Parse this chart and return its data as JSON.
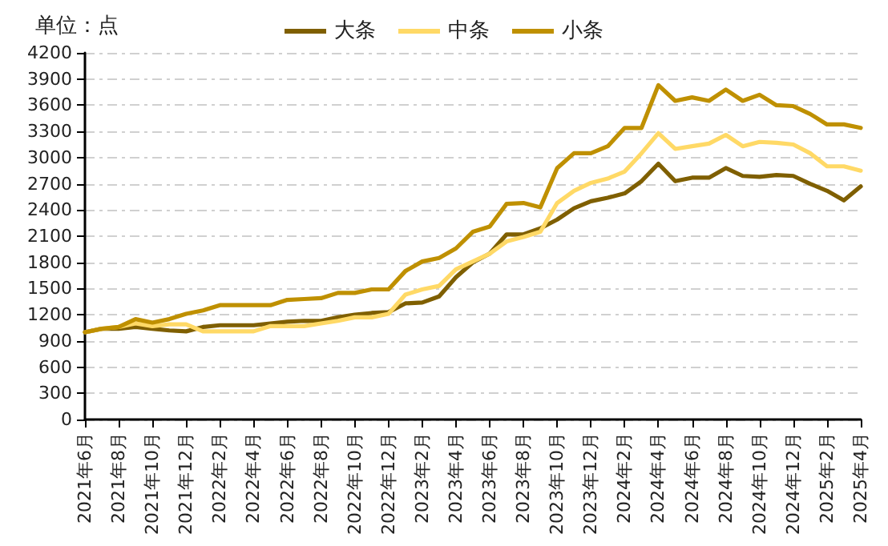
{
  "chart_data": {
    "type": "line",
    "ylabel": "单位：点",
    "categories": [
      "2021年6月",
      null,
      "2021年8月",
      null,
      "2021年10月",
      null,
      "2021年12月",
      null,
      "2022年2月",
      null,
      "2022年4月",
      null,
      "2022年6月",
      null,
      "2022年8月",
      null,
      "2022年10月",
      null,
      "2022年12月",
      null,
      "2023年2月",
      null,
      "2023年4月",
      null,
      "2023年6月",
      null,
      "2023年8月",
      null,
      "2023年10月",
      null,
      "2023年12月",
      null,
      "2024年2月",
      null,
      "2024年4月",
      null,
      "2024年6月",
      null,
      "2024年8月",
      null,
      "2024年10月",
      null,
      "2024年12月",
      null,
      "2025年2月",
      null,
      "2025年4月"
    ],
    "series": [
      {
        "name": "大条",
        "color": "#7f5f00",
        "values": [
          1000,
          1040,
          1040,
          1060,
          1040,
          1020,
          1010,
          1060,
          1080,
          1080,
          1080,
          1100,
          1120,
          1130,
          1130,
          1170,
          1200,
          1220,
          1230,
          1330,
          1340,
          1410,
          1630,
          1800,
          1900,
          2120,
          2120,
          2190,
          2290,
          2420,
          2500,
          2540,
          2590,
          2730,
          2930,
          2730,
          2770,
          2770,
          2880,
          2790,
          2780,
          2800,
          2790,
          2700,
          2620,
          2510,
          2670
        ]
      },
      {
        "name": "中条",
        "color": "#ffd966",
        "values": [
          1000,
          1040,
          1060,
          1100,
          1070,
          1090,
          1090,
          1010,
          1010,
          1010,
          1010,
          1070,
          1070,
          1070,
          1100,
          1130,
          1170,
          1170,
          1210,
          1430,
          1490,
          1530,
          1720,
          1810,
          1900,
          2040,
          2090,
          2150,
          2480,
          2620,
          2710,
          2760,
          2840,
          3050,
          3280,
          3100,
          3130,
          3160,
          3260,
          3130,
          3180,
          3170,
          3150,
          3050,
          2900,
          2900,
          2850
        ]
      },
      {
        "name": "小条",
        "color": "#bf9000",
        "values": [
          1000,
          1040,
          1060,
          1150,
          1110,
          1150,
          1210,
          1250,
          1310,
          1310,
          1310,
          1310,
          1370,
          1380,
          1390,
          1450,
          1450,
          1490,
          1490,
          1700,
          1810,
          1850,
          1960,
          2150,
          2210,
          2470,
          2480,
          2430,
          2880,
          3050,
          3050,
          3130,
          3340,
          3340,
          3830,
          3650,
          3690,
          3650,
          3780,
          3650,
          3720,
          3600,
          3590,
          3500,
          3380,
          3380,
          3340
        ]
      }
    ],
    "ylim": [
      0,
      4200
    ],
    "yticks": [
      0,
      300,
      600,
      900,
      1200,
      1500,
      1800,
      2100,
      2400,
      2700,
      3000,
      3300,
      3600,
      3900,
      4200
    ],
    "grid": "y",
    "legend": "top",
    "marker": "none",
    "line_style": "solid"
  }
}
